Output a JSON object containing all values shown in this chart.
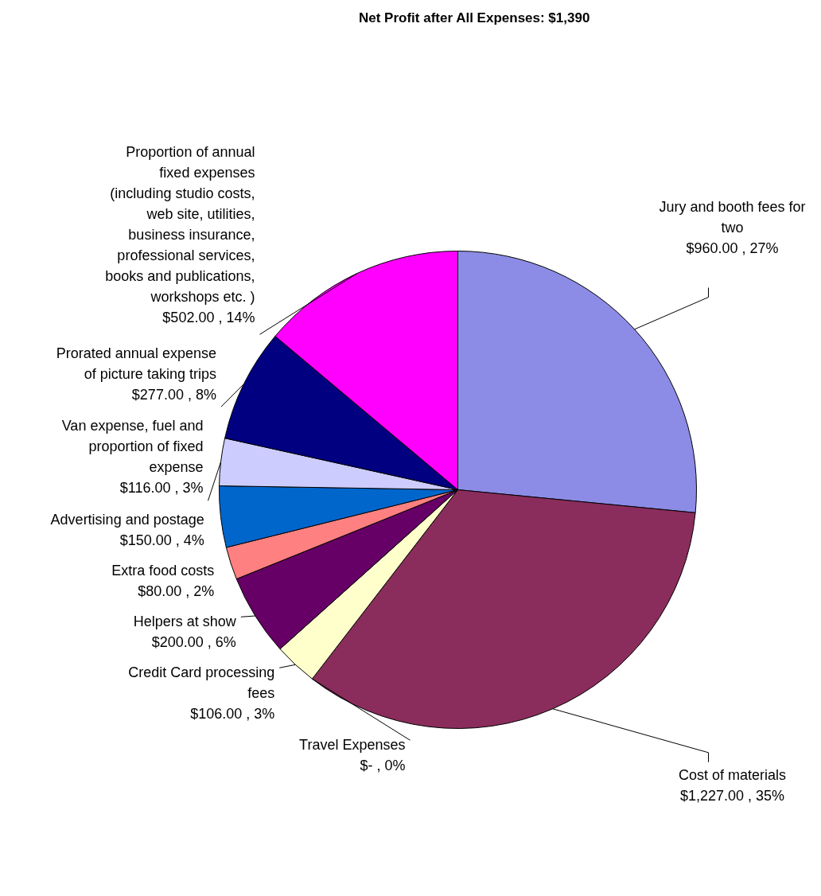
{
  "chart_data": {
    "type": "pie",
    "title": "Net Profit after All Expenses: $1,390",
    "categories": [
      "Jury and booth fees for two",
      "Cost of materials",
      "Travel Expenses",
      "Credit Card processing fees",
      "Helpers at show",
      "Extra food costs",
      "Advertising and postage",
      "Van expense, fuel and proportion of fixed expense",
      "Prorated annual expense of picture taking trips",
      "Proportion of annual fixed expenses (including studio costs, web site, utilities, business insurance, professional services, books and publications, workshops etc. )"
    ],
    "values": [
      960,
      1227,
      0,
      106,
      200,
      80,
      150,
      116,
      277,
      502
    ],
    "value_labels": [
      "$960.00 , 27%",
      "$1,227.00 , 35%",
      "$- , 0%",
      "$106.00 , 3%",
      "$200.00 , 6%",
      "$80.00 , 2%",
      "$150.00 , 4%",
      "$116.00 , 3%",
      "$277.00 , 8%",
      "$502.00 , 14%"
    ],
    "colors": [
      "#8c8ce6",
      "#8a2d5c",
      "#ccffff",
      "#ffffcc",
      "#660066",
      "#ff8080",
      "#0066cc",
      "#ccccff",
      "#000080",
      "#ff00ff"
    ]
  }
}
